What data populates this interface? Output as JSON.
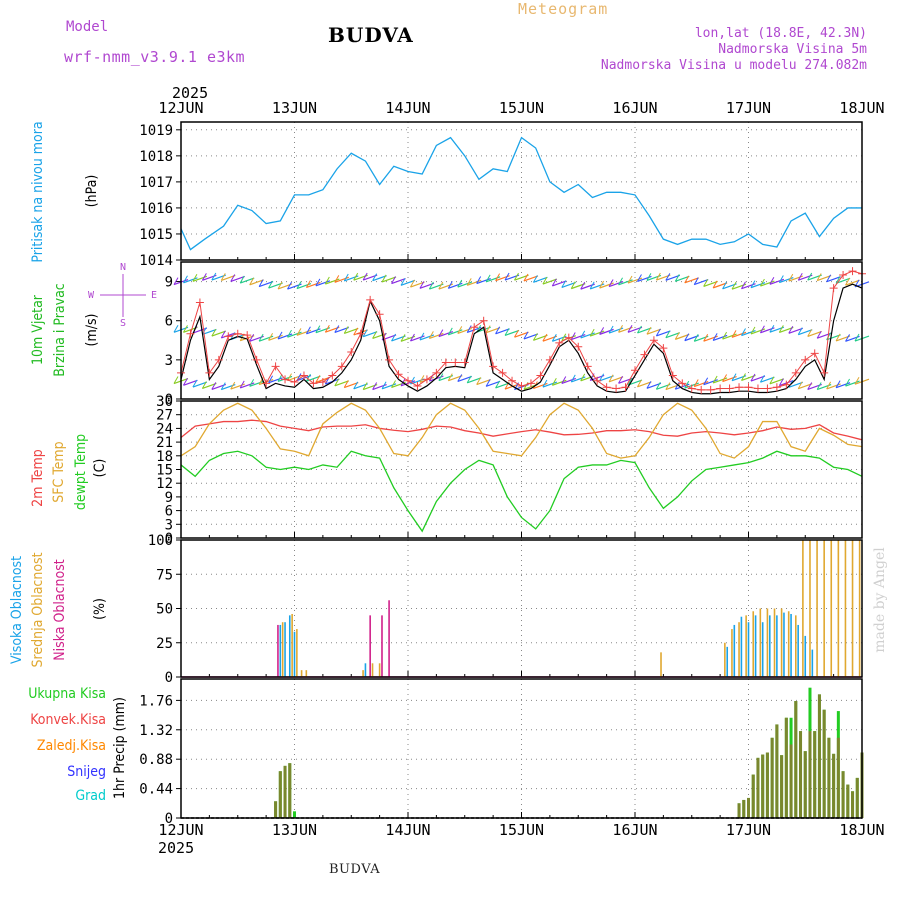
{
  "header": {
    "model_label": "Model",
    "model_name": "wrf-nmm_v3.9.1  e3km",
    "title": "BUDVA",
    "meteogram": "Meteogram",
    "location": "lon,lat (18.8E, 42.3N)",
    "elevation": "Nadmorska Visina 5m",
    "model_elevation": "Nadmorska Visina u modelu 274.082m"
  },
  "footer": {
    "station": "BUDVA"
  },
  "credit": "made by Angel",
  "colors": {
    "pressure": "#1aa3e8",
    "wind_label": "#22bb22",
    "wind_barb_purple": "#8a2be2",
    "wind_speed": "#000000",
    "wind_gust": "#ee4444",
    "temp_2m": "#ee4444",
    "temp_sfc": "#e0a830",
    "dewpoint": "#22cc22",
    "cloud_high": "#1aa3e8",
    "cloud_mid": "#e0a830",
    "cloud_low": "#d0208a",
    "precip_total": "#22cc22",
    "precip_conv": "#ee4444",
    "precip_frz": "#ff8800",
    "snow": "#3333ff",
    "hail": "#00cccc",
    "axis_purple": "#b048d0"
  },
  "chart_data": [
    {
      "type": "line",
      "panel": "pressure",
      "title": "Pritisak na nivou mora",
      "ylabel": "(hPa)",
      "ylim": [
        1014,
        1019.3
      ],
      "yticks": [
        1014,
        1015,
        1016,
        1017,
        1018,
        1019
      ],
      "x_start_label": "2025",
      "x_ticks": [
        "12JUN",
        "13JUN",
        "14JUN",
        "15JUN",
        "16JUN",
        "17JUN",
        "18JUN"
      ],
      "x_unit": "hours from 12JUN 00UTC",
      "series": [
        {
          "name": "MSLP",
          "x": [
            0,
            2,
            5,
            9,
            12,
            15,
            18,
            21,
            24,
            27,
            30,
            33,
            36,
            39,
            42,
            45,
            48,
            51,
            54,
            57,
            60,
            63,
            66,
            69,
            72,
            75,
            78,
            81,
            84,
            87,
            90,
            93,
            96,
            99,
            102,
            105,
            108,
            111,
            114,
            117,
            120,
            123,
            126,
            129,
            132,
            135,
            138,
            141,
            144
          ],
          "values": [
            1015.2,
            1014.4,
            1014.8,
            1015.3,
            1016.1,
            1015.9,
            1015.4,
            1015.5,
            1016.5,
            1016.5,
            1016.7,
            1017.5,
            1018.1,
            1017.8,
            1016.9,
            1017.6,
            1017.4,
            1017.3,
            1018.4,
            1018.7,
            1018.0,
            1017.1,
            1017.5,
            1017.4,
            1018.7,
            1018.3,
            1017.0,
            1016.6,
            1016.9,
            1016.4,
            1016.6,
            1016.6,
            1016.5,
            1015.7,
            1014.8,
            1014.6,
            1014.8,
            1014.8,
            1014.6,
            1014.7,
            1015.0,
            1014.6,
            1014.5,
            1015.5,
            1015.8,
            1014.9,
            1015.6,
            1016.0,
            1016.0
          ]
        }
      ]
    },
    {
      "type": "line",
      "panel": "wind",
      "title": "10m Vjetar Brzina i Pravac",
      "ylabel": "(m/s)",
      "ylim": [
        0,
        10.5
      ],
      "yticks": [
        0,
        3,
        6,
        9
      ],
      "compass": {
        "n": "N",
        "s": "S",
        "e": "E",
        "w": "W"
      },
      "series": [
        {
          "name": "speed",
          "x": [
            0,
            2,
            4,
            6,
            8,
            10,
            12,
            14,
            16,
            18,
            20,
            22,
            24,
            26,
            28,
            30,
            32,
            34,
            36,
            38,
            40,
            42,
            44,
            46,
            48,
            50,
            52,
            54,
            56,
            58,
            60,
            62,
            64,
            66,
            68,
            70,
            72,
            74,
            76,
            78,
            80,
            82,
            84,
            86,
            88,
            90,
            92,
            94,
            96,
            98,
            100,
            102,
            104,
            106,
            108,
            110,
            112,
            114,
            116,
            118,
            120,
            122,
            124,
            126,
            128,
            130,
            132,
            134,
            136,
            138,
            140,
            142,
            144
          ],
          "values": [
            1.5,
            4.5,
            6.3,
            1.5,
            2.5,
            4.5,
            4.8,
            4.6,
            2.6,
            0.8,
            1.2,
            1.0,
            0.9,
            1.5,
            0.8,
            0.9,
            1.3,
            2.0,
            3.0,
            4.5,
            7.5,
            6.0,
            2.5,
            1.5,
            1.0,
            0.6,
            1.0,
            1.6,
            2.4,
            2.5,
            2.4,
            5.0,
            5.5,
            2.0,
            1.5,
            1.0,
            0.6,
            0.8,
            1.3,
            2.6,
            4.0,
            4.5,
            3.5,
            2.0,
            1.0,
            0.6,
            0.5,
            0.6,
            1.8,
            3.0,
            4.2,
            3.5,
            1.4,
            0.8,
            0.5,
            0.4,
            0.4,
            0.5,
            0.5,
            0.6,
            0.6,
            0.5,
            0.5,
            0.6,
            0.8,
            1.5,
            2.5,
            3.0,
            1.5,
            6.0,
            8.5,
            8.8,
            8.5
          ]
        },
        {
          "name": "gust",
          "x": [
            0,
            2,
            4,
            6,
            8,
            10,
            12,
            14,
            16,
            18,
            20,
            22,
            24,
            26,
            28,
            30,
            32,
            34,
            36,
            38,
            40,
            42,
            44,
            46,
            48,
            50,
            52,
            54,
            56,
            58,
            60,
            62,
            64,
            66,
            68,
            70,
            72,
            74,
            76,
            78,
            80,
            82,
            84,
            86,
            88,
            90,
            92,
            94,
            96,
            98,
            100,
            102,
            104,
            106,
            108,
            110,
            112,
            114,
            116,
            118,
            120,
            122,
            124,
            126,
            128,
            130,
            132,
            134,
            136,
            138,
            140,
            142,
            144
          ],
          "values": [
            2.0,
            5.0,
            7.4,
            2.0,
            3.0,
            4.8,
            5.0,
            4.9,
            3.0,
            1.2,
            2.5,
            1.5,
            1.3,
            1.8,
            1.2,
            1.3,
            1.8,
            2.5,
            3.6,
            5.0,
            7.6,
            6.5,
            3.0,
            1.9,
            1.4,
            1.0,
            1.5,
            2.0,
            2.8,
            2.8,
            2.8,
            5.5,
            6.0,
            2.5,
            2.0,
            1.4,
            1.0,
            1.2,
            1.8,
            3.0,
            4.3,
            4.7,
            4.0,
            2.5,
            1.4,
            0.9,
            0.8,
            0.9,
            2.2,
            3.4,
            4.5,
            3.9,
            1.8,
            1.2,
            0.8,
            0.7,
            0.7,
            0.8,
            0.8,
            0.9,
            0.9,
            0.8,
            0.8,
            0.9,
            1.1,
            2.0,
            3.0,
            3.5,
            2.0,
            8.5,
            9.5,
            9.8,
            9.6
          ]
        }
      ]
    },
    {
      "type": "line",
      "panel": "temperature",
      "ylabel": "(C)",
      "ylim": [
        0,
        30
      ],
      "yticks": [
        0,
        3,
        6,
        9,
        12,
        15,
        18,
        21,
        24,
        27,
        30
      ],
      "legend": [
        "2m Temp",
        "SFC Temp",
        "dewpt Temp"
      ],
      "series": [
        {
          "name": "2m Temp",
          "x": [
            0,
            3,
            6,
            9,
            12,
            15,
            18,
            21,
            24,
            27,
            30,
            33,
            36,
            39,
            42,
            45,
            48,
            51,
            54,
            57,
            60,
            63,
            66,
            69,
            72,
            75,
            78,
            81,
            84,
            87,
            90,
            93,
            96,
            99,
            102,
            105,
            108,
            111,
            114,
            117,
            120,
            123,
            126,
            129,
            132,
            135,
            138,
            141,
            144
          ],
          "values": [
            22,
            24.5,
            25,
            25.5,
            25.5,
            25.8,
            25.5,
            24.5,
            24,
            23.5,
            24.3,
            24.5,
            24.5,
            24.8,
            24,
            23.6,
            23.3,
            23.8,
            24.5,
            24.3,
            23.5,
            23,
            22.3,
            22.8,
            23.3,
            23.7,
            23.2,
            22.6,
            22.7,
            23,
            23.5,
            23.5,
            23.7,
            23.3,
            22.5,
            22.3,
            23,
            23.3,
            23,
            22.6,
            23,
            23.5,
            24.3,
            23.8,
            24,
            24.8,
            23,
            22.3,
            21.5
          ]
        },
        {
          "name": "SFC Temp",
          "x": [
            0,
            3,
            6,
            9,
            12,
            15,
            18,
            21,
            24,
            27,
            30,
            33,
            36,
            39,
            42,
            45,
            48,
            51,
            54,
            57,
            60,
            63,
            66,
            69,
            72,
            75,
            78,
            81,
            84,
            87,
            90,
            93,
            96,
            99,
            102,
            105,
            108,
            111,
            114,
            117,
            120,
            123,
            126,
            129,
            132,
            135,
            138,
            141,
            144
          ],
          "values": [
            18,
            20,
            25,
            28,
            29.5,
            28,
            24,
            19.5,
            19,
            18,
            25,
            27.5,
            29.5,
            28,
            24,
            18.5,
            18,
            22,
            27,
            29.5,
            28,
            24,
            19,
            18.5,
            18,
            22,
            27,
            29.5,
            28,
            24,
            18.5,
            17.5,
            18,
            22,
            27,
            29.5,
            28,
            24,
            18.5,
            17.5,
            20,
            25.5,
            25.5,
            20,
            19,
            24,
            22.5,
            20.5,
            20
          ]
        },
        {
          "name": "dewpt Temp",
          "x": [
            0,
            3,
            6,
            9,
            12,
            15,
            18,
            21,
            24,
            27,
            30,
            33,
            36,
            39,
            42,
            45,
            48,
            51,
            54,
            57,
            60,
            63,
            66,
            69,
            72,
            75,
            78,
            81,
            84,
            87,
            90,
            93,
            96,
            99,
            102,
            105,
            108,
            111,
            114,
            117,
            120,
            123,
            126,
            129,
            132,
            135,
            138,
            141,
            144
          ],
          "values": [
            16,
            13.5,
            17,
            18.5,
            19,
            18,
            15.5,
            15,
            15.5,
            15,
            16,
            15.5,
            19,
            18,
            17.5,
            11,
            6,
            1.5,
            8,
            12,
            15,
            17,
            16,
            9,
            4.5,
            2,
            6,
            13,
            15.5,
            16,
            16,
            17,
            16.5,
            11,
            6.5,
            9,
            12.5,
            15,
            15.5,
            16,
            16.5,
            17.5,
            19,
            18,
            18,
            17.5,
            15.5,
            15,
            13.5
          ]
        }
      ]
    },
    {
      "type": "bar",
      "panel": "clouds",
      "ylabel": "(%)",
      "ylim": [
        0,
        100
      ],
      "yticks": [
        0,
        25,
        50,
        75,
        100
      ],
      "legend": [
        "Visoka Oblacnost",
        "Srednja Oblacnost",
        "Niska Oblacnost"
      ],
      "series": [
        {
          "name": "high",
          "x": [
            21,
            22,
            23,
            24,
            39,
            115.5,
            117,
            118.5,
            120,
            121.5,
            123,
            124.5,
            126,
            127.5,
            129,
            130.5,
            132,
            133.5
          ],
          "values": [
            38,
            40,
            45,
            33,
            10,
            22,
            38,
            44,
            40,
            45,
            40,
            45,
            45,
            47,
            46,
            38,
            30,
            20
          ]
        },
        {
          "name": "mid",
          "x": [
            21.5,
            23.5,
            24.5,
            25.5,
            26.5,
            38.5,
            40.5,
            42,
            101.5,
            115,
            116.5,
            118,
            119.5,
            121,
            122.5,
            124,
            125.5,
            127,
            128.5,
            130,
            131.5,
            133,
            134.5,
            136,
            137.5,
            139,
            140.5,
            142,
            143.5
          ],
          "values": [
            40,
            46,
            35,
            5,
            5,
            5,
            10,
            10,
            18,
            25,
            35,
            40,
            45,
            48,
            50,
            50,
            50,
            50,
            48,
            45,
            100,
            100,
            100,
            100,
            100,
            100,
            100,
            100,
            100
          ]
        },
        {
          "name": "low",
          "x": [
            20.5,
            40,
            42.5,
            44
          ],
          "values": [
            38,
            45,
            45,
            56
          ]
        }
      ]
    },
    {
      "type": "bar",
      "panel": "precipitation",
      "ylabel": "1hr Precip (mm)",
      "ylim": [
        0,
        2.08
      ],
      "yticks": [
        0,
        0.44,
        0.88,
        1.32,
        1.76
      ],
      "legend": [
        "Ukupna Kisa",
        "Konvek.Kisa",
        "Zaledj.Kisa",
        "Snijeg",
        "Grad"
      ],
      "series": [
        {
          "name": "total",
          "x": [
            20,
            21,
            22,
            23,
            24,
            118,
            119,
            120,
            121,
            122,
            123,
            124,
            125,
            126,
            127,
            128,
            129,
            130,
            131,
            132,
            133,
            134,
            135,
            136,
            137,
            138,
            139,
            140,
            141,
            142,
            143,
            144
          ],
          "values": [
            0.25,
            0.7,
            0.78,
            0.82,
            0.1,
            0.22,
            0.27,
            0.3,
            0.65,
            0.9,
            0.95,
            0.98,
            1.2,
            1.4,
            0.94,
            1.5,
            1.5,
            1.75,
            1.3,
            1.0,
            1.95,
            1.3,
            1.85,
            1.62,
            1.2,
            0.96,
            1.6,
            0.7,
            0.5,
            0.4,
            0.6,
            0.98
          ]
        },
        {
          "name": "convective",
          "x": [
            20,
            21,
            22,
            23,
            118,
            119,
            120,
            121,
            122,
            123,
            124,
            125,
            126,
            127,
            128,
            129,
            130,
            131,
            132,
            133,
            134,
            135,
            136,
            137,
            138,
            139,
            140,
            141,
            142,
            143,
            144
          ],
          "values": [
            0.25,
            0.7,
            0.78,
            0.82,
            0.22,
            0.27,
            0.3,
            0.65,
            0.9,
            0.95,
            0.98,
            1.2,
            1.4,
            0.94,
            1.5,
            1.1,
            1.75,
            1.3,
            1.0,
            1.3,
            1.3,
            1.85,
            1.62,
            1.2,
            0.96,
            1.2,
            0.7,
            0.5,
            0.4,
            0.6,
            0.98
          ]
        }
      ]
    }
  ]
}
